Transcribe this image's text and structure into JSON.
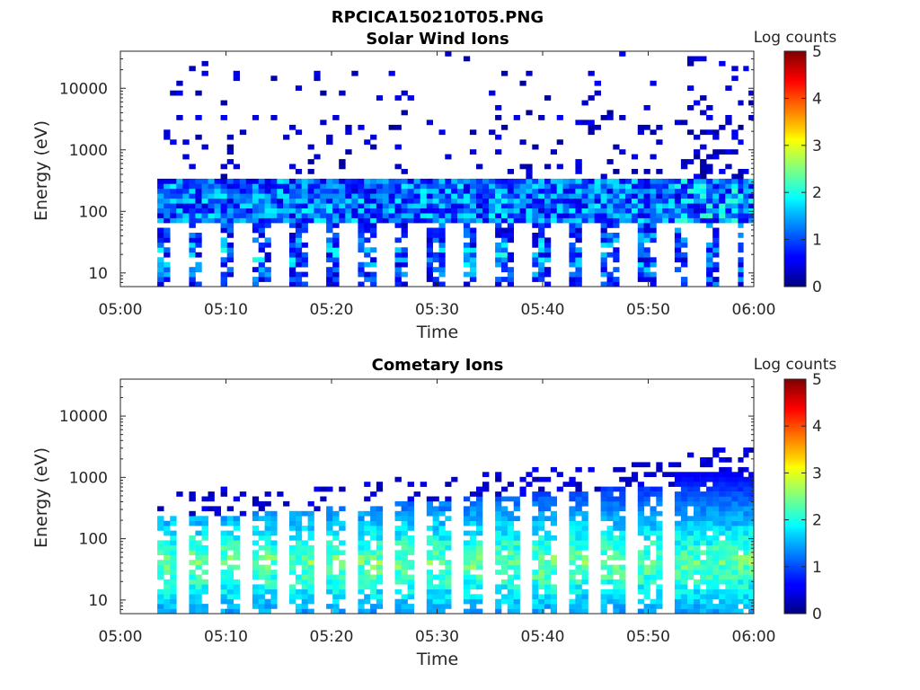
{
  "figure": {
    "title": "RPCICA150210T05.PNG"
  },
  "chart_data": [
    {
      "type": "heatmap",
      "title": "Solar Wind Ions",
      "xlabel": "Time",
      "ylabel": "Energy (eV)",
      "x_ticks": [
        "05:00",
        "05:10",
        "05:20",
        "05:30",
        "05:40",
        "05:50",
        "06:00"
      ],
      "y_ticks": [
        "10",
        "100",
        "1000",
        "10000"
      ],
      "y_scale": "log",
      "ylim": [
        6,
        40000
      ],
      "xlim": [
        "05:00",
        "06:00"
      ],
      "colorbar": {
        "label": "Log counts",
        "ticks": [
          "0",
          "1",
          "2",
          "3",
          "4",
          "5"
        ],
        "range": [
          0,
          5
        ]
      },
      "sweep_start_minutes": [
        3.5,
        6.5,
        9.5,
        12.5,
        16,
        19.5,
        22.5,
        26,
        29,
        32.5,
        35.5,
        39,
        42.5,
        45.5,
        49,
        52.5,
        55.5,
        58.5
      ],
      "peak_log_counts": 2.3
    },
    {
      "type": "heatmap",
      "title": "Cometary Ions",
      "xlabel": "Time",
      "ylabel": "Energy (eV)",
      "x_ticks": [
        "05:00",
        "05:10",
        "05:20",
        "05:30",
        "05:40",
        "05:50",
        "06:00"
      ],
      "y_ticks": [
        "10",
        "100",
        "1000",
        "10000"
      ],
      "y_scale": "log",
      "ylim": [
        6,
        40000
      ],
      "xlim": [
        "05:00",
        "06:00"
      ],
      "colorbar": {
        "label": "Log counts",
        "ticks": [
          "0",
          "1",
          "2",
          "3",
          "4",
          "5"
        ],
        "range": [
          0,
          5
        ]
      },
      "sweep_start_minutes": [
        3.5,
        6.5,
        9.5,
        12.5,
        16,
        19.5,
        22.5,
        26,
        29,
        32.5,
        35.5,
        39,
        42.5,
        45.5,
        49,
        52.5,
        55.5,
        58.5
      ],
      "peak_log_counts": 3.0
    }
  ]
}
